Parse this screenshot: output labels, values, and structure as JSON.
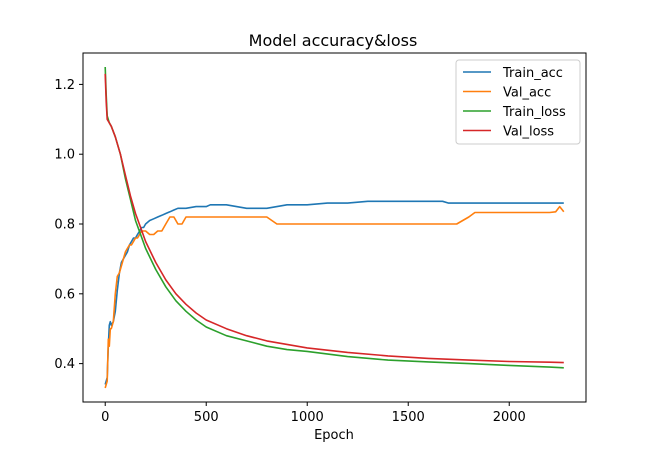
{
  "chart_data": {
    "type": "line",
    "title": "Model accuracy&loss",
    "xlabel": "Epoch",
    "ylabel": "",
    "xlim": [
      -110,
      2380
    ],
    "ylim": [
      0.29,
      1.29
    ],
    "xticks": [
      0,
      500,
      1000,
      1500,
      2000
    ],
    "yticks": [
      0.4,
      0.6,
      0.8,
      1.0,
      1.2
    ],
    "xtick_labels": [
      "0",
      "500",
      "1000",
      "1500",
      "2000"
    ],
    "ytick_labels": [
      "0.4",
      "0.6",
      "0.8",
      "1.0",
      "1.2"
    ],
    "legend_position": "top-right",
    "series": [
      {
        "name": "Train_acc",
        "color": "#1f77b4",
        "x": [
          0,
          5,
          10,
          15,
          20,
          25,
          30,
          40,
          50,
          60,
          70,
          80,
          90,
          100,
          110,
          120,
          130,
          140,
          150,
          160,
          170,
          180,
          190,
          200,
          220,
          240,
          260,
          280,
          300,
          320,
          340,
          360,
          400,
          450,
          500,
          520,
          550,
          600,
          650,
          700,
          800,
          850,
          900,
          1000,
          1100,
          1200,
          1300,
          1400,
          1500,
          1600,
          1670,
          1700,
          1800,
          1900,
          2000,
          2100,
          2200,
          2270
        ],
        "y": [
          0.34,
          0.35,
          0.36,
          0.45,
          0.51,
          0.52,
          0.51,
          0.52,
          0.55,
          0.61,
          0.66,
          0.69,
          0.7,
          0.71,
          0.72,
          0.74,
          0.75,
          0.76,
          0.76,
          0.77,
          0.78,
          0.79,
          0.79,
          0.8,
          0.81,
          0.815,
          0.82,
          0.825,
          0.83,
          0.835,
          0.84,
          0.845,
          0.845,
          0.85,
          0.85,
          0.855,
          0.855,
          0.855,
          0.85,
          0.845,
          0.845,
          0.85,
          0.855,
          0.855,
          0.86,
          0.86,
          0.865,
          0.865,
          0.865,
          0.865,
          0.865,
          0.86,
          0.86,
          0.86,
          0.86,
          0.86,
          0.86,
          0.86
        ]
      },
      {
        "name": "Val_acc",
        "color": "#ff7f0e",
        "x": [
          0,
          5,
          10,
          15,
          20,
          25,
          30,
          40,
          50,
          60,
          70,
          80,
          90,
          100,
          110,
          120,
          130,
          140,
          150,
          160,
          170,
          180,
          190,
          200,
          220,
          240,
          260,
          280,
          300,
          320,
          340,
          360,
          380,
          400,
          450,
          500,
          600,
          700,
          800,
          850,
          900,
          1000,
          1200,
          1400,
          1600,
          1700,
          1740,
          1800,
          1830,
          1900,
          2000,
          2100,
          2200,
          2230,
          2250,
          2270
        ],
        "y": [
          0.33,
          0.34,
          0.35,
          0.47,
          0.45,
          0.5,
          0.5,
          0.52,
          0.6,
          0.65,
          0.66,
          0.68,
          0.7,
          0.72,
          0.73,
          0.74,
          0.74,
          0.75,
          0.76,
          0.76,
          0.77,
          0.78,
          0.78,
          0.78,
          0.77,
          0.77,
          0.78,
          0.78,
          0.8,
          0.82,
          0.82,
          0.8,
          0.8,
          0.82,
          0.82,
          0.82,
          0.82,
          0.82,
          0.82,
          0.8,
          0.8,
          0.8,
          0.8,
          0.8,
          0.8,
          0.8,
          0.8,
          0.82,
          0.833,
          0.833,
          0.833,
          0.833,
          0.833,
          0.835,
          0.85,
          0.835
        ]
      },
      {
        "name": "Train_loss",
        "color": "#2ca02c",
        "x": [
          0,
          5,
          10,
          20,
          30,
          50,
          75,
          100,
          125,
          150,
          175,
          200,
          250,
          300,
          350,
          400,
          450,
          500,
          600,
          700,
          800,
          900,
          1000,
          1200,
          1400,
          1600,
          1800,
          2000,
          2200,
          2270
        ],
        "y": [
          1.25,
          1.17,
          1.11,
          1.09,
          1.08,
          1.05,
          1.0,
          0.93,
          0.87,
          0.81,
          0.77,
          0.73,
          0.67,
          0.62,
          0.58,
          0.55,
          0.525,
          0.505,
          0.48,
          0.465,
          0.45,
          0.44,
          0.435,
          0.42,
          0.41,
          0.405,
          0.4,
          0.395,
          0.39,
          0.388
        ]
      },
      {
        "name": "Val_loss",
        "color": "#d62728",
        "x": [
          0,
          5,
          10,
          20,
          30,
          50,
          75,
          100,
          125,
          150,
          175,
          200,
          250,
          300,
          350,
          400,
          450,
          500,
          600,
          700,
          800,
          900,
          1000,
          1200,
          1400,
          1600,
          1800,
          2000,
          2200,
          2270
        ],
        "y": [
          1.23,
          1.15,
          1.1,
          1.09,
          1.08,
          1.05,
          1.0,
          0.94,
          0.88,
          0.83,
          0.79,
          0.75,
          0.69,
          0.64,
          0.6,
          0.57,
          0.545,
          0.525,
          0.5,
          0.48,
          0.465,
          0.455,
          0.445,
          0.432,
          0.422,
          0.415,
          0.41,
          0.406,
          0.404,
          0.403
        ]
      }
    ]
  }
}
